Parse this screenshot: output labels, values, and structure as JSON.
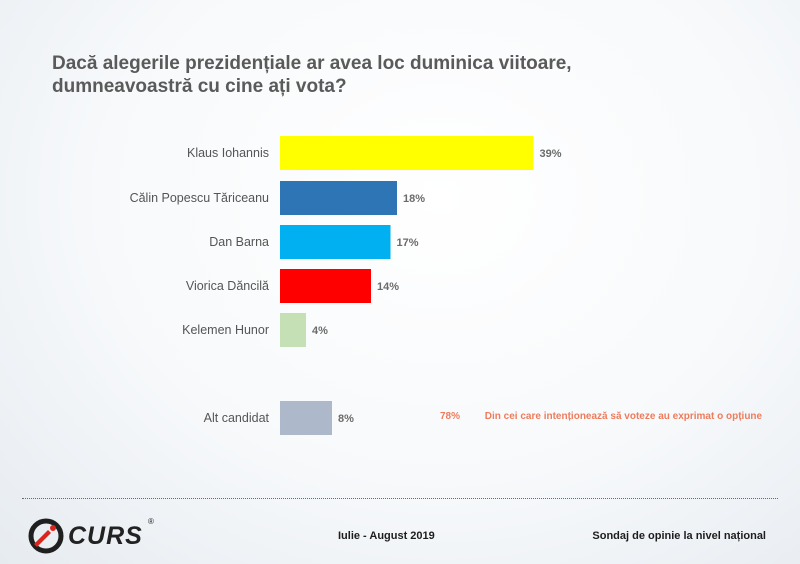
{
  "title_lines": [
    "Dacă alegerile prezidențiale ar avea loc duminica viitoare,",
    "dumneavoastră cu cine ați vota?"
  ],
  "chart_data": {
    "type": "bar",
    "orientation": "horizontal",
    "title": "Dacă alegerile prezidențiale ar avea loc duminica viitoare, dumneavoastră cu cine ați vota?",
    "categories": [
      "Klaus Iohannis",
      "Călin Popescu Tăriceanu",
      "Dan Barna",
      "Viorica Dăncilă",
      "Kelemen Hunor",
      "Alt candidat"
    ],
    "values": [
      39,
      18,
      17,
      14,
      4,
      8
    ],
    "value_labels": [
      "39%",
      "18%",
      "17%",
      "14%",
      "4%",
      "8%"
    ],
    "colors": [
      "#ffff00",
      "#2e75b6",
      "#00b0f0",
      "#ff0000",
      "#c5e0b4",
      "#adb9ca"
    ],
    "unit": "%",
    "grid": false,
    "legend": "none"
  },
  "note": {
    "percent": "78%",
    "text": "Din cei care intenționează să voteze au exprimat o opțiune"
  },
  "footer": {
    "brand": "CURS",
    "registered": "®",
    "date": "Iulie - August 2019",
    "source": "Sondaj de opinie la nivel național"
  }
}
